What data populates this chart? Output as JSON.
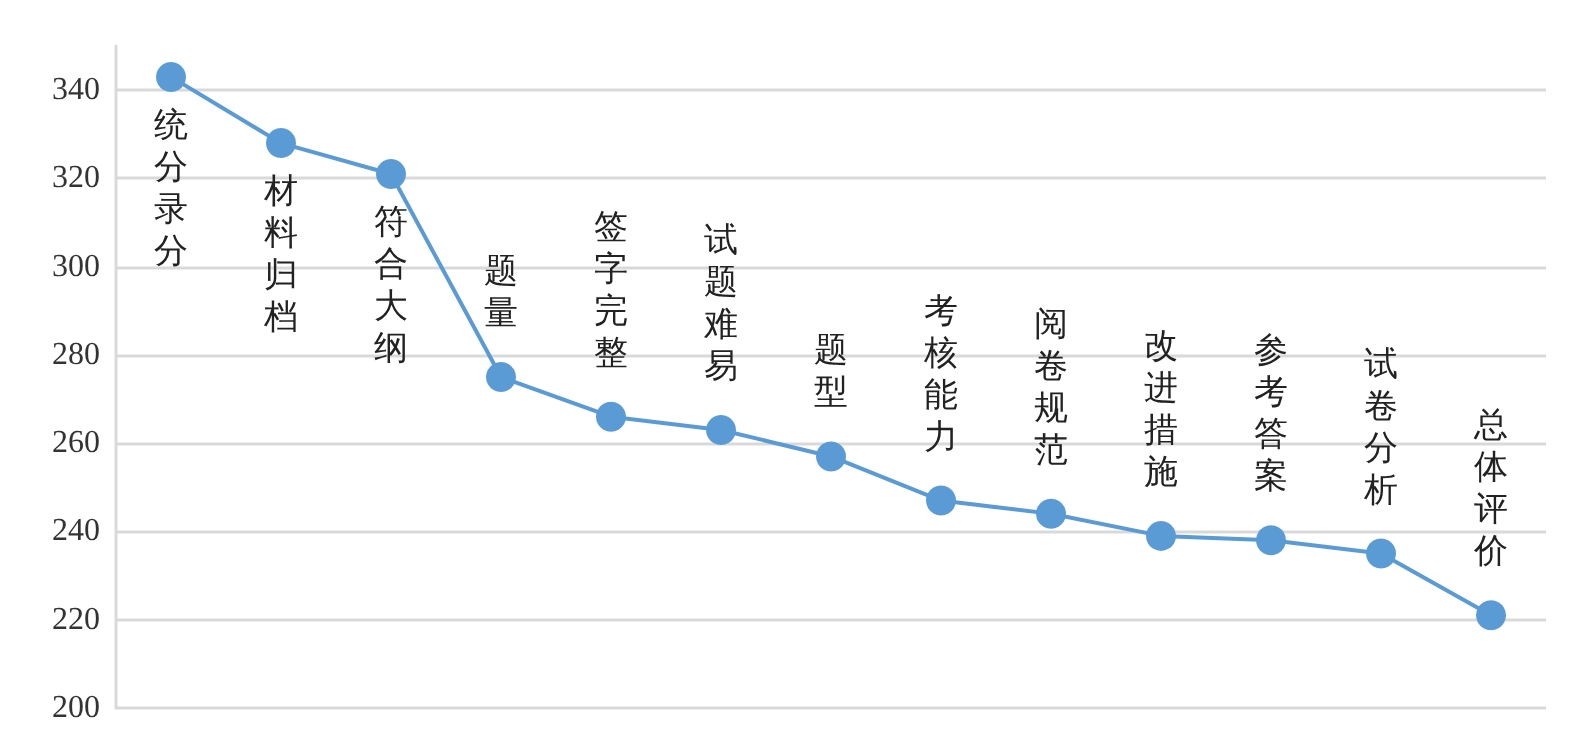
{
  "chart_data": {
    "type": "line",
    "categories": [
      "统分录分",
      "材料归档",
      "符合大纲",
      "题量",
      "签字完整",
      "试题难易",
      "题型",
      "考核能力",
      "阅卷规范",
      "改进措施",
      "参考答案",
      "试卷分析",
      "总体评价"
    ],
    "series": [
      {
        "color": "#5b9bd5",
        "values": [
          343,
          328,
          321,
          275,
          266,
          263,
          257,
          247,
          244,
          239,
          238,
          235,
          221
        ]
      }
    ],
    "ylim": [
      200,
      350
    ],
    "yticks": [
      200,
      220,
      240,
      260,
      280,
      300,
      320,
      340
    ],
    "grid": "y",
    "marker": "circle",
    "line_style": "solid",
    "tick_labels": "y"
  }
}
